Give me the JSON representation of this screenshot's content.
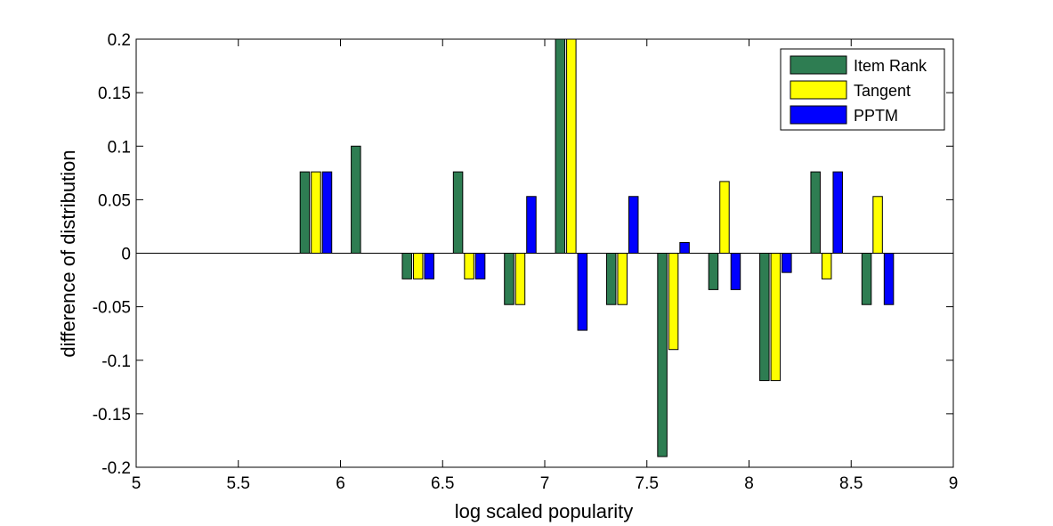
{
  "chart_data": {
    "type": "bar",
    "title": "",
    "xlabel": "log scaled popularity",
    "ylabel": "difference of distribution",
    "xlim": [
      5,
      9
    ],
    "ylim": [
      -0.2,
      0.2
    ],
    "xticks": [
      5,
      5.5,
      6,
      6.5,
      7,
      7.5,
      8,
      8.5,
      9
    ],
    "xtick_labels": [
      "5",
      "5.5",
      "6",
      "6.5",
      "7",
      "7.5",
      "8",
      "8.5",
      "9"
    ],
    "yticks": [
      -0.2,
      -0.15,
      -0.1,
      -0.05,
      0,
      0.05,
      0.1,
      0.15,
      0.2
    ],
    "ytick_labels": [
      "-0.2",
      "-0.15",
      "-0.1",
      "-0.05",
      "0",
      "0.05",
      "0.1",
      "0.15",
      "0.2"
    ],
    "grid": false,
    "legend_position": "top-right",
    "categories": [
      5.88,
      6.13,
      6.38,
      6.63,
      6.88,
      7.13,
      7.38,
      7.63,
      7.88,
      8.13,
      8.38,
      8.63
    ],
    "series": [
      {
        "name": "Item Rank",
        "color": "#2e7d52",
        "values": [
          0.076,
          0.1,
          -0.024,
          0.076,
          -0.048,
          0.2,
          -0.048,
          -0.19,
          -0.034,
          -0.119,
          0.076,
          -0.048
        ]
      },
      {
        "name": "Tangent",
        "color": "#ffff00",
        "values": [
          0.076,
          0,
          -0.024,
          -0.024,
          -0.048,
          0.2,
          -0.048,
          -0.09,
          0.067,
          -0.119,
          -0.024,
          0.053
        ]
      },
      {
        "name": "PPTM",
        "color": "#0000ff",
        "values": [
          0.076,
          0,
          -0.024,
          -0.024,
          0.053,
          -0.072,
          0.053,
          0.01,
          -0.034,
          -0.018,
          0.076,
          -0.048
        ]
      }
    ]
  }
}
